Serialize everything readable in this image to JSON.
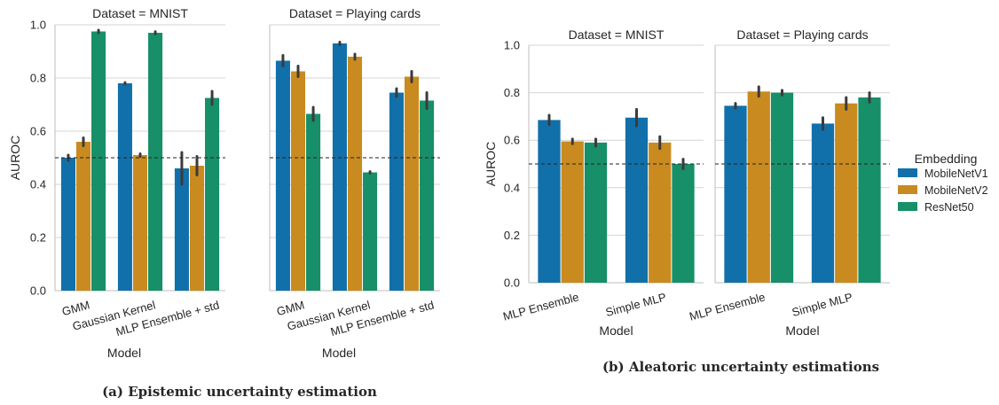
{
  "colors": {
    "MobileNetV1": "#1170aa",
    "MobileNetV2": "#c98a1f",
    "ResNet50": "#178f68",
    "error": "#3b3b3b",
    "grid": "#d4d4d4",
    "axis": "#bdbdbd",
    "reference": "#222222"
  },
  "captions": {
    "left": "(a) Epistemic uncertainty estimation",
    "right": "(b) Aleatoric uncertainty estimations"
  },
  "legend": {
    "title": "Embedding",
    "entries": [
      "MobileNetV1",
      "MobileNetV2",
      "ResNet50"
    ],
    "placement": "right"
  },
  "chart_data": [
    {
      "type": "bar",
      "figure": "a",
      "ylabel": "AUROC",
      "xlabel": "Model",
      "ylim": [
        0,
        1.0
      ],
      "yticks": [
        "0.0",
        "0.2",
        "0.4",
        "0.6",
        "0.8",
        "1.0"
      ],
      "reference_line": 0.5,
      "grid": true,
      "series_names": [
        "MobileNetV1",
        "MobileNetV2",
        "ResNet50"
      ],
      "facets": [
        {
          "title": "Dataset = MNIST",
          "categories": [
            "GMM",
            "Gaussian Kernel",
            "MLP Ensemble + std"
          ],
          "series": [
            {
              "name": "MobileNetV1",
              "values": [
                0.5,
                0.78,
                0.46
              ],
              "err": [
                0.01,
                0.003,
                0.06
              ]
            },
            {
              "name": "MobileNetV2",
              "values": [
                0.56,
                0.51,
                0.47
              ],
              "err": [
                0.015,
                0.005,
                0.035
              ]
            },
            {
              "name": "ResNet50",
              "values": [
                0.975,
                0.97,
                0.725
              ],
              "err": [
                0.005,
                0.004,
                0.025
              ]
            }
          ]
        },
        {
          "title": "Dataset = Playing cards",
          "categories": [
            "GMM",
            "Gaussian Kernel",
            "MLP Ensemble + std"
          ],
          "series": [
            {
              "name": "MobileNetV1",
              "values": [
                0.865,
                0.93,
                0.745
              ],
              "err": [
                0.02,
                0.005,
                0.015
              ]
            },
            {
              "name": "MobileNetV2",
              "values": [
                0.825,
                0.88,
                0.805
              ],
              "err": [
                0.02,
                0.01,
                0.02
              ]
            },
            {
              "name": "ResNet50",
              "values": [
                0.665,
                0.445,
                0.715
              ],
              "err": [
                0.025,
                0.003,
                0.03
              ]
            }
          ]
        }
      ]
    },
    {
      "type": "bar",
      "figure": "b",
      "ylabel": "AUROC",
      "xlabel": "Model",
      "ylim": [
        0,
        1.0
      ],
      "yticks": [
        "0.0",
        "0.2",
        "0.4",
        "0.6",
        "0.8",
        "1.0"
      ],
      "reference_line": 0.5,
      "grid": true,
      "series_names": [
        "MobileNetV1",
        "MobileNetV2",
        "ResNet50"
      ],
      "facets": [
        {
          "title": "Dataset = MNIST",
          "categories": [
            "MLP Ensemble",
            "Simple MLP"
          ],
          "series": [
            {
              "name": "MobileNetV1",
              "values": [
                0.685,
                0.695
              ],
              "err": [
                0.02,
                0.035
              ]
            },
            {
              "name": "MobileNetV2",
              "values": [
                0.595,
                0.59
              ],
              "err": [
                0.01,
                0.025
              ]
            },
            {
              "name": "ResNet50",
              "values": [
                0.59,
                0.5
              ],
              "err": [
                0.015,
                0.02
              ]
            }
          ]
        },
        {
          "title": "Dataset = Playing cards",
          "categories": [
            "MLP Ensemble",
            "Simple MLP"
          ],
          "series": [
            {
              "name": "MobileNetV1",
              "values": [
                0.745,
                0.67
              ],
              "err": [
                0.01,
                0.025
              ]
            },
            {
              "name": "MobileNetV2",
              "values": [
                0.805,
                0.755
              ],
              "err": [
                0.02,
                0.025
              ]
            },
            {
              "name": "ResNet50",
              "values": [
                0.8,
                0.78
              ],
              "err": [
                0.01,
                0.02
              ]
            }
          ]
        }
      ]
    }
  ]
}
